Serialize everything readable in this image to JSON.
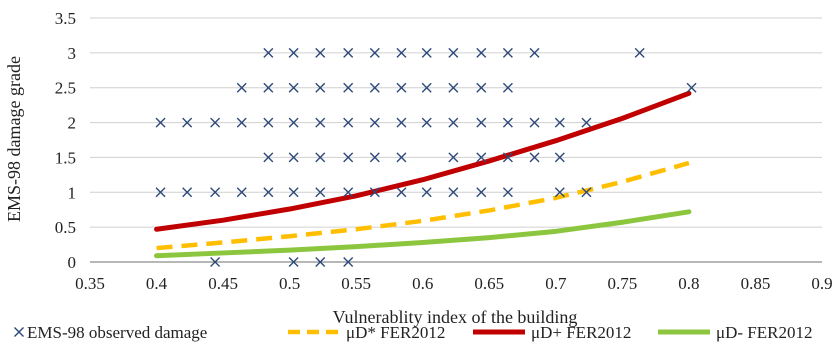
{
  "chart_data": {
    "type": "scatter",
    "title": "",
    "xlabel": "Vulnerablity index of the building",
    "ylabel": "EMS-98 damage grade",
    "xlim": [
      0.35,
      0.9
    ],
    "ylim": [
      0,
      3.5
    ],
    "x_ticks": [
      "0.35",
      "0.4",
      "0.45",
      "0.5",
      "0.55",
      "0.6",
      "0.65",
      "0.7",
      "0.75",
      "0.8",
      "0.85",
      "0.9"
    ],
    "y_ticks": [
      "0",
      "0.5",
      "1",
      "1.5",
      "2",
      "2.5",
      "3",
      "3.5"
    ],
    "grid": "horizontal",
    "legend_position": "bottom",
    "series": [
      {
        "name": "EMS-98 observed damage",
        "kind": "scatter",
        "marker": "x",
        "color": "#2e4a7a",
        "points": [
          [
            0.484,
            3
          ],
          [
            0.503,
            3
          ],
          [
            0.523,
            3
          ],
          [
            0.544,
            3
          ],
          [
            0.564,
            3
          ],
          [
            0.584,
            3
          ],
          [
            0.603,
            3
          ],
          [
            0.623,
            3
          ],
          [
            0.644,
            3
          ],
          [
            0.664,
            3
          ],
          [
            0.684,
            3
          ],
          [
            0.763,
            3
          ],
          [
            0.464,
            2.5
          ],
          [
            0.484,
            2.5
          ],
          [
            0.503,
            2.5
          ],
          [
            0.523,
            2.5
          ],
          [
            0.544,
            2.5
          ],
          [
            0.564,
            2.5
          ],
          [
            0.584,
            2.5
          ],
          [
            0.603,
            2.5
          ],
          [
            0.623,
            2.5
          ],
          [
            0.644,
            2.5
          ],
          [
            0.664,
            2.5
          ],
          [
            0.802,
            2.5
          ],
          [
            0.403,
            2
          ],
          [
            0.423,
            2
          ],
          [
            0.444,
            2
          ],
          [
            0.464,
            2
          ],
          [
            0.484,
            2
          ],
          [
            0.503,
            2
          ],
          [
            0.523,
            2
          ],
          [
            0.544,
            2
          ],
          [
            0.564,
            2
          ],
          [
            0.584,
            2
          ],
          [
            0.603,
            2
          ],
          [
            0.623,
            2
          ],
          [
            0.644,
            2
          ],
          [
            0.664,
            2
          ],
          [
            0.684,
            2
          ],
          [
            0.703,
            2
          ],
          [
            0.723,
            2
          ],
          [
            0.484,
            1.5
          ],
          [
            0.503,
            1.5
          ],
          [
            0.523,
            1.5
          ],
          [
            0.544,
            1.5
          ],
          [
            0.564,
            1.5
          ],
          [
            0.584,
            1.5
          ],
          [
            0.623,
            1.5
          ],
          [
            0.644,
            1.5
          ],
          [
            0.664,
            1.5
          ],
          [
            0.684,
            1.5
          ],
          [
            0.703,
            1.5
          ],
          [
            0.403,
            1
          ],
          [
            0.423,
            1
          ],
          [
            0.444,
            1
          ],
          [
            0.464,
            1
          ],
          [
            0.484,
            1
          ],
          [
            0.503,
            1
          ],
          [
            0.523,
            1
          ],
          [
            0.544,
            1
          ],
          [
            0.564,
            1
          ],
          [
            0.584,
            1
          ],
          [
            0.603,
            1
          ],
          [
            0.623,
            1
          ],
          [
            0.644,
            1
          ],
          [
            0.664,
            1
          ],
          [
            0.703,
            1
          ],
          [
            0.723,
            1
          ],
          [
            0.444,
            0
          ],
          [
            0.503,
            0
          ],
          [
            0.523,
            0
          ],
          [
            0.544,
            0
          ]
        ]
      },
      {
        "name": "μD* FER2012",
        "kind": "line",
        "style": "dashed",
        "color": "#ffbf00",
        "x": [
          0.4,
          0.45,
          0.5,
          0.55,
          0.6,
          0.65,
          0.7,
          0.75,
          0.8
        ],
        "y": [
          0.2,
          0.28,
          0.37,
          0.47,
          0.59,
          0.74,
          0.92,
          1.15,
          1.42
        ]
      },
      {
        "name": "μD+ FER2012",
        "kind": "line",
        "style": "solid",
        "color": "#c00000",
        "x": [
          0.4,
          0.45,
          0.5,
          0.55,
          0.6,
          0.65,
          0.7,
          0.75,
          0.8
        ],
        "y": [
          0.47,
          0.6,
          0.76,
          0.95,
          1.18,
          1.45,
          1.74,
          2.06,
          2.42
        ]
      },
      {
        "name": "μD- FER2012",
        "kind": "line",
        "style": "solid",
        "color": "#8cc63f",
        "x": [
          0.4,
          0.45,
          0.5,
          0.55,
          0.6,
          0.65,
          0.7,
          0.75,
          0.8
        ],
        "y": [
          0.09,
          0.13,
          0.17,
          0.22,
          0.28,
          0.35,
          0.44,
          0.57,
          0.72
        ]
      }
    ]
  }
}
